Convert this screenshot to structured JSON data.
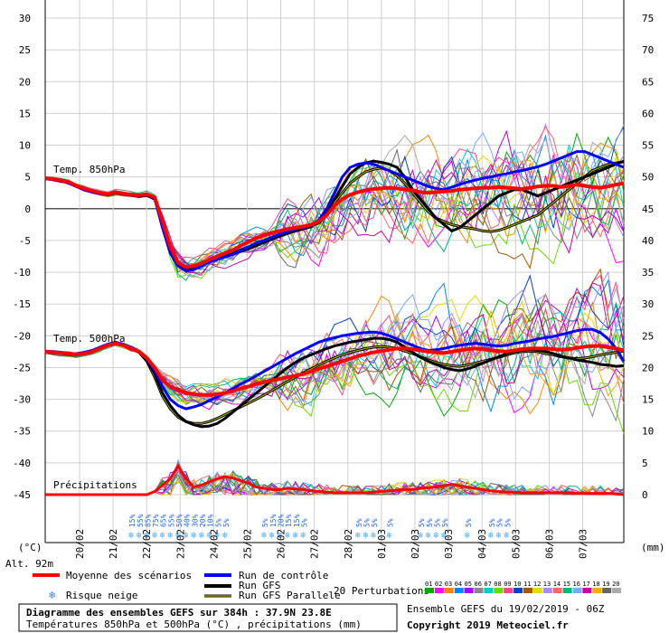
{
  "chart_data": {
    "type": "line",
    "title": "Diagramme des ensembles GEFS sur 384h : 37.9N 23.8E",
    "subtitle": "Températures 850hPa et 500hPa (°C) , précipitations (mm)",
    "run_info": "Ensemble GEFS du 19/02/2019 - 06Z",
    "copyright": "Copyright 2019 Meteociel.fr",
    "altitude": "Alt. 92m",
    "left_unit": "(°C)",
    "right_unit": "(mm)",
    "left_axis": {
      "range": [
        -45,
        30
      ],
      "ticks": [
        "30",
        "25",
        "20",
        "15",
        "10",
        "5",
        "0",
        "-5",
        "-10",
        "-15",
        "-20",
        "-25",
        "-30",
        "-35",
        "-40",
        "-45"
      ]
    },
    "right_axis": {
      "range": [
        0,
        75
      ],
      "ticks": [
        "75",
        "70",
        "65",
        "60",
        "55",
        "50",
        "45",
        "40",
        "35",
        "30",
        "25",
        "20",
        "15",
        "10",
        "5",
        "0"
      ]
    },
    "x_labels": [
      "20/02",
      "21/02",
      "22/02",
      "23/02",
      "24/02",
      "25/02",
      "26/02",
      "27/02",
      "28/02",
      "01/03",
      "02/03",
      "03/03",
      "04/03",
      "05/03",
      "06/03",
      "07/03"
    ],
    "section_labels": {
      "t850": "Temp. 850hPa",
      "t500": "Temp. 500hPa",
      "precip": "Précipitations"
    },
    "snow_risk": [
      {
        "step": 21,
        "pct": "15%"
      },
      {
        "step": 22,
        "pct": "55%"
      },
      {
        "step": 23,
        "pct": "85%"
      },
      {
        "step": 24,
        "pct": "75%"
      },
      {
        "step": 25,
        "pct": "65%"
      },
      {
        "step": 26,
        "pct": "55%"
      },
      {
        "step": 27,
        "pct": "50%"
      },
      {
        "step": 28,
        "pct": "40%"
      },
      {
        "step": 29,
        "pct": "30%"
      },
      {
        "step": 30,
        "pct": "20%"
      },
      {
        "step": 31,
        "pct": "10%"
      },
      {
        "step": 32,
        "pct": "5%"
      },
      {
        "step": 33,
        "pct": "5%"
      },
      {
        "step": 38,
        "pct": "5%"
      },
      {
        "step": 39,
        "pct": "15%"
      },
      {
        "step": 40,
        "pct": "20%"
      },
      {
        "step": 41,
        "pct": "15%"
      },
      {
        "step": 42,
        "pct": "15%"
      },
      {
        "step": 43,
        "pct": "5%"
      },
      {
        "step": 50,
        "pct": "5%"
      },
      {
        "step": 51,
        "pct": "5%"
      },
      {
        "step": 52,
        "pct": "5%"
      },
      {
        "step": 54,
        "pct": "5%"
      },
      {
        "step": 58,
        "pct": "5%"
      },
      {
        "step": 59,
        "pct": "5%"
      },
      {
        "step": 60,
        "pct": "5%"
      },
      {
        "step": 61,
        "pct": "5%"
      },
      {
        "step": 64,
        "pct": "5%"
      },
      {
        "step": 67,
        "pct": "5%"
      },
      {
        "step": 68,
        "pct": "5%"
      },
      {
        "step": 69,
        "pct": "5%"
      }
    ],
    "series": [
      {
        "name": "Moyenne des scénarios",
        "color": "#ff0000",
        "t850": [
          4.8,
          4.7,
          4.5,
          4.2,
          3.6,
          3.2,
          2.8,
          2.5,
          2.3,
          2.6,
          2.4,
          2.2,
          2.1,
          2.3,
          1.8,
          -2,
          -6,
          -8.5,
          -9.2,
          -9,
          -8.6,
          -8,
          -7.5,
          -7,
          -6.5,
          -5.8,
          -5.2,
          -4.6,
          -4.2,
          -3.8,
          -3.5,
          -3.2,
          -3,
          -2.8,
          -2.5,
          -2,
          -1,
          0.5,
          1.5,
          2.2,
          2.6,
          2.9,
          3.1,
          3.2,
          3.3,
          3.2,
          3,
          2.9,
          2.6,
          2.5,
          2.6,
          2.7,
          2.8,
          3,
          3.1,
          3.2,
          3.3,
          3.3,
          3.4,
          3.3,
          3.2,
          3.1,
          3.3,
          3.5,
          3.6,
          3.6,
          3.4,
          3.6,
          3.8,
          3.6,
          3.4,
          3.3,
          3.5,
          3.8,
          4
        ],
        "t500": [
          -22.5,
          -22.6,
          -22.7,
          -22.8,
          -22.9,
          -22.8,
          -22.5,
          -22,
          -21.5,
          -21.2,
          -21.5,
          -22,
          -22.5,
          -23.5,
          -25,
          -27,
          -28,
          -28.5,
          -29,
          -29.2,
          -29.3,
          -29.3,
          -29.2,
          -29,
          -28.7,
          -28.3,
          -28,
          -27.6,
          -27.3,
          -27,
          -26.8,
          -26.5,
          -26.3,
          -26,
          -25.6,
          -25.2,
          -24.8,
          -24.4,
          -24,
          -23.6,
          -23.2,
          -22.9,
          -22.6,
          -22.4,
          -22.2,
          -22,
          -22,
          -22.1,
          -22.3,
          -22.5,
          -22.6,
          -22.7,
          -22.5,
          -22.3,
          -22.1,
          -22,
          -22.1,
          -22.3,
          -22.4,
          -22.5,
          -22.3,
          -22.1,
          -22,
          -22,
          -22,
          -22.1,
          -22.2,
          -22.1,
          -21.9,
          -21.7,
          -21.6,
          -21.6,
          -21.8,
          -22,
          -22.3
        ],
        "precip": [
          0,
          0,
          0,
          0,
          0,
          0,
          0,
          0,
          0,
          0,
          0,
          0,
          0,
          0,
          0.5,
          1.5,
          2.5,
          4.5,
          2.5,
          1.2,
          1.5,
          2,
          2.5,
          2.8,
          2.6,
          2.2,
          1.8,
          1.2,
          1,
          0.8,
          0.8,
          1,
          0.9,
          0.8,
          0.6,
          0.5,
          0.4,
          0.3,
          0.3,
          0.3,
          0.3,
          0.3,
          0.4,
          0.5,
          0.6,
          0.7,
          0.8,
          0.8,
          1,
          1.1,
          1.2,
          1.4,
          1.6,
          1.4,
          1.2,
          1,
          0.8,
          0.6,
          0.5,
          0.4,
          0.4,
          0.3,
          0.3,
          0.3,
          0.3,
          0.3,
          0.3,
          0.3,
          0.2,
          0.2,
          0.2,
          0.2,
          0.2,
          0.1,
          0
        ]
      },
      {
        "name": "Run de contrôle",
        "color": "#0000ff",
        "t850": [
          4.7,
          4.6,
          4.5,
          4,
          3.5,
          3,
          2.6,
          2.4,
          2.2,
          2.5,
          2.3,
          2.1,
          2,
          2.2,
          1.6,
          -3,
          -7,
          -9,
          -9.8,
          -9.6,
          -9,
          -8.4,
          -8,
          -7.6,
          -7.2,
          -6.6,
          -6,
          -5.4,
          -5,
          -4.5,
          -4,
          -3.6,
          -3.2,
          -3,
          -2.6,
          -1.8,
          0,
          2.5,
          5,
          6.5,
          7,
          7.2,
          7,
          6.5,
          6,
          5.5,
          5,
          4.5,
          4,
          3.5,
          3.2,
          3,
          3.4,
          3.8,
          4.2,
          4.5,
          4.8,
          5,
          5.3,
          5.5,
          5.8,
          6,
          6.3,
          6.6,
          7,
          7.5,
          8,
          8.5,
          9,
          9,
          8.5,
          8,
          7.5,
          7,
          6.5
        ],
        "t500": [
          -22.4,
          -22.5,
          -22.6,
          -22.8,
          -22.8,
          -22.6,
          -22.3,
          -21.8,
          -21.3,
          -21,
          -21.3,
          -21.8,
          -22.4,
          -23.6,
          -25.5,
          -28,
          -30,
          -31,
          -31.5,
          -31.2,
          -30.8,
          -30.2,
          -29.6,
          -29,
          -28.3,
          -27.6,
          -27,
          -26.3,
          -25.6,
          -24.9,
          -24.2,
          -23.5,
          -22.8,
          -22.2,
          -21.6,
          -21,
          -20.6,
          -20.3,
          -20,
          -19.8,
          -19.6,
          -19.5,
          -19.4,
          -19.6,
          -20,
          -20.5,
          -21,
          -21.5,
          -22,
          -22.3,
          -22.2,
          -22,
          -21.7,
          -21.5,
          -21.3,
          -21.2,
          -21.3,
          -21.5,
          -21.6,
          -21.5,
          -21.2,
          -21,
          -20.8,
          -20.5,
          -20.3,
          -20.1,
          -19.8,
          -19.5,
          -19.2,
          -19,
          -19,
          -19.5,
          -20.5,
          -22,
          -24
        ]
      },
      {
        "name": "Run GFS",
        "color": "#000000",
        "t850": [
          4.8,
          4.7,
          4.4,
          4.1,
          3.5,
          3.1,
          2.7,
          2.4,
          2.2,
          2.5,
          2.3,
          2.1,
          1.9,
          2.1,
          1.5,
          -2.5,
          -6.5,
          -8.8,
          -9.5,
          -9.3,
          -8.9,
          -8.3,
          -7.9,
          -7.5,
          -7.1,
          -6.7,
          -6.3,
          -5.8,
          -5.3,
          -4.8,
          -4.3,
          -3.9,
          -3.5,
          -3.2,
          -2.8,
          -2,
          -0.5,
          1.5,
          3.5,
          5.5,
          6.5,
          7.2,
          7.5,
          7.3,
          7,
          6.5,
          5,
          3,
          1.5,
          0,
          -1.5,
          -2.5,
          -3.5,
          -3,
          -2,
          -1,
          0,
          1,
          2,
          2.5,
          3,
          3,
          2.5,
          2,
          2.5,
          3,
          3.5,
          4,
          4.5,
          5,
          5.5,
          6,
          6.5,
          7,
          7.5
        ],
        "t500": [
          -22.5,
          -22.6,
          -22.7,
          -22.9,
          -22.9,
          -22.7,
          -22.4,
          -21.9,
          -21.4,
          -21.1,
          -21.4,
          -21.9,
          -22.5,
          -23.8,
          -26,
          -29,
          -31,
          -32.5,
          -33.5,
          -34,
          -34.3,
          -34.2,
          -33.8,
          -33,
          -32,
          -31,
          -30,
          -29,
          -28,
          -27,
          -26,
          -25,
          -24.2,
          -23.5,
          -23,
          -22.5,
          -22,
          -21.6,
          -21.3,
          -21,
          -20.8,
          -20.6,
          -20.4,
          -20.4,
          -20.6,
          -21,
          -21.8,
          -22.6,
          -23.4,
          -24,
          -24.5,
          -25,
          -25.3,
          -25.5,
          -25.2,
          -24.8,
          -24.3,
          -23.8,
          -23.3,
          -22.8,
          -22.5,
          -22.3,
          -22.2,
          -22.3,
          -22.5,
          -22.8,
          -23.2,
          -23.5,
          -23.8,
          -24,
          -24.2,
          -24.5,
          -24.6,
          -24.8,
          -24.7
        ]
      },
      {
        "name": "Run GFS Parallele",
        "color": "#bbbb00",
        "t850": [
          4.7,
          4.6,
          4.4,
          4.1,
          3.6,
          3.1,
          2.7,
          2.5,
          2.3,
          2.6,
          2.4,
          2.1,
          2,
          2.2,
          1.6,
          -2.2,
          -6.2,
          -8.6,
          -9.3,
          -9.1,
          -8.7,
          -8.1,
          -7.7,
          -7.3,
          -6.9,
          -6.5,
          -6,
          -5.6,
          -5.2,
          -4.7,
          -4.2,
          -3.8,
          -3.4,
          -3.1,
          -2.7,
          -2.2,
          -1,
          1,
          2.5,
          4,
          5,
          5.8,
          6.2,
          6.4,
          6,
          5.2,
          4,
          2.5,
          1,
          -0.5,
          -1.5,
          -2,
          -2.5,
          -2.8,
          -3,
          -3.2,
          -3.5,
          -3.6,
          -3.4,
          -3,
          -2.5,
          -2,
          -1.5,
          -1,
          0,
          1,
          2,
          3,
          4,
          5,
          6,
          6.5,
          7,
          7.2,
          7.4
        ],
        "t500": [
          -22.6,
          -22.7,
          -22.8,
          -22.9,
          -23,
          -22.8,
          -22.5,
          -22,
          -21.5,
          -21.2,
          -21.5,
          -22,
          -22.6,
          -24,
          -26.5,
          -29.5,
          -31.5,
          -32.8,
          -33.5,
          -33.8,
          -33.8,
          -33.5,
          -33,
          -32.4,
          -31.8,
          -31.2,
          -30.6,
          -30,
          -29.3,
          -28.6,
          -27.9,
          -27.2,
          -26.5,
          -25.8,
          -25.2,
          -24.6,
          -24,
          -23.5,
          -23,
          -22.6,
          -22.3,
          -22,
          -21.8,
          -21.7,
          -21.8,
          -22,
          -22.4,
          -22.8,
          -23.3,
          -23.8,
          -24.2,
          -24.5,
          -24.7,
          -24.8,
          -24.6,
          -24.3,
          -24,
          -23.7,
          -23.4,
          -23,
          -22.7,
          -22.5,
          -22.4,
          -22.5,
          -22.8,
          -23,
          -23.3,
          -23.5,
          -23.6,
          -23.5,
          -23.3,
          -23,
          -22.8,
          -22.6,
          -22.4
        ]
      }
    ],
    "legend": {
      "mean": "Moyenne des scénarios",
      "control": "Run de contrôle",
      "gfs": "Run GFS",
      "parallel": "Run GFS Parallele",
      "snow": "Risque neige",
      "perturbations": "20 Perturbations"
    },
    "perturbation_colors": [
      "#00aa00",
      "#ff00ff",
      "#ff8800",
      "#0088ff",
      "#aa00ff",
      "#888888",
      "#00cccc",
      "#66dd00",
      "#ff4488",
      "#0044cc",
      "#aa5500",
      "#dddd00",
      "#aa88ff",
      "#ff6666",
      "#00bb77",
      "#77aaff",
      "#cc00aa",
      "#ffaa00",
      "#666666",
      "#aaaaaa"
    ],
    "perturbation_ids": [
      "01",
      "02",
      "03",
      "04",
      "05",
      "06",
      "07",
      "08",
      "09",
      "10",
      "11",
      "12",
      "13",
      "14",
      "15",
      "16",
      "17",
      "18",
      "19",
      "20"
    ]
  }
}
